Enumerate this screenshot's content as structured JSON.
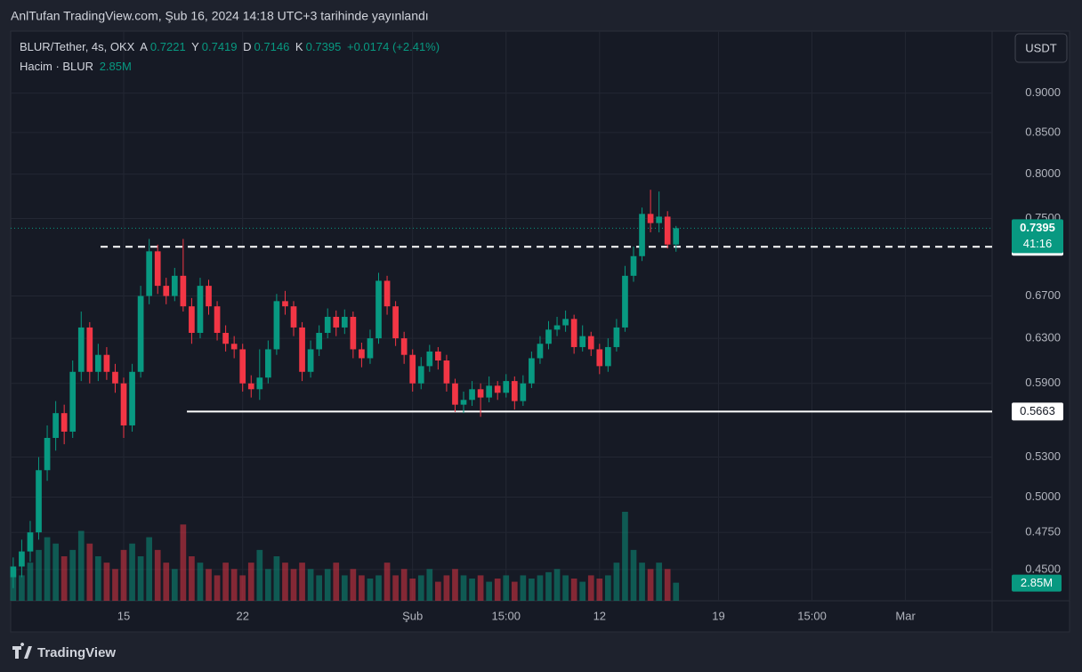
{
  "publisher_line": "AnlTufan TradingView.com, Şub 16, 2024 14:18 UTC+3 tarihinde yayınlandı",
  "currency_button": "USDT",
  "footer_logo": "TradingView",
  "chart_data": {
    "type": "candlestick",
    "symbol": "BLUR/Tether, 4s, OKX",
    "ohlc_labels": [
      "A",
      "Y",
      "D",
      "K"
    ],
    "change": "+0.0174 (+2.41%)",
    "volume_title": "Hacim · BLUR",
    "volume_label": "2.85M",
    "countdown": "41:16",
    "up_color": "#089981",
    "down_color": "#f23645",
    "log_scale": true,
    "grid": true,
    "ylim": [
      0.43,
      0.985
    ],
    "yticks": [
      {
        "value": 0.45,
        "label": "0.4500"
      },
      {
        "value": 0.475,
        "label": "0.4750"
      },
      {
        "value": 0.5,
        "label": "0.5000"
      },
      {
        "value": 0.53,
        "label": "0.5300"
      },
      {
        "value": 0.59,
        "label": "0.5900"
      },
      {
        "value": 0.63,
        "label": "0.6300"
      },
      {
        "value": 0.67,
        "label": "0.6700"
      },
      {
        "value": 0.75,
        "label": "0.7500"
      },
      {
        "value": 0.8,
        "label": "0.8000"
      },
      {
        "value": 0.85,
        "label": "0.8500"
      },
      {
        "value": 0.9,
        "label": "0.9000"
      }
    ],
    "xlim": [
      -6.65,
      51.1
    ],
    "xticks": [
      {
        "value": 0,
        "label": "15"
      },
      {
        "value": 7,
        "label": "22"
      },
      {
        "value": 17,
        "label": "Şub"
      },
      {
        "value": 22.5,
        "label": "15:00"
      },
      {
        "value": 28,
        "label": "12"
      },
      {
        "value": 35,
        "label": "19"
      },
      {
        "value": 40.5,
        "label": "15:00"
      },
      {
        "value": 46,
        "label": "Mar"
      }
    ],
    "levels": [
      {
        "value": 0.7198,
        "style": "dashed",
        "from": -1.36
      },
      {
        "value": 0.5663,
        "style": "solid",
        "from": 3.72
      }
    ],
    "x": [
      -6.5,
      -6,
      -5.5,
      -5,
      -4.5,
      -4,
      -3.5,
      -3,
      -2.5,
      -2,
      -1.5,
      -1,
      -0.5,
      0,
      0.5,
      1,
      1.5,
      2,
      2.5,
      3,
      3.5,
      4,
      4.5,
      5,
      5.5,
      6,
      6.5,
      7,
      7.5,
      8,
      8.5,
      9,
      9.5,
      10,
      10.5,
      11,
      11.5,
      12,
      12.5,
      13,
      13.5,
      14,
      14.5,
      15,
      15.5,
      16,
      16.5,
      17,
      17.5,
      18,
      18.5,
      19,
      19.5,
      20,
      20.5,
      21,
      21.5,
      22,
      22.5,
      23,
      23.5,
      24,
      24.5,
      25,
      25.5,
      26,
      26.5,
      27,
      27.5,
      28,
      28.5,
      29,
      29.5,
      30,
      30.5,
      31,
      31.5,
      32,
      32.5
    ],
    "candles": {
      "open": [
        0.445,
        0.452,
        0.462,
        0.475,
        0.52,
        0.545,
        0.565,
        0.55,
        0.6,
        0.64,
        0.6,
        0.615,
        0.6,
        0.59,
        0.555,
        0.6,
        0.67,
        0.715,
        0.68,
        0.67,
        0.69,
        0.66,
        0.635,
        0.68,
        0.66,
        0.635,
        0.625,
        0.62,
        0.59,
        0.585,
        0.595,
        0.62,
        0.665,
        0.66,
        0.64,
        0.6,
        0.62,
        0.635,
        0.65,
        0.64,
        0.65,
        0.62,
        0.612,
        0.63,
        0.685,
        0.66,
        0.63,
        0.615,
        0.59,
        0.605,
        0.618,
        0.61,
        0.59,
        0.572,
        0.576,
        0.585,
        0.578,
        0.588,
        0.582,
        0.592,
        0.575,
        0.59,
        0.612,
        0.625,
        0.638,
        0.642,
        0.648,
        0.622,
        0.632,
        0.62,
        0.605,
        0.622,
        0.64,
        0.69,
        0.71,
        0.755,
        0.745,
        0.752,
        0.7221
      ],
      "high": [
        0.458,
        0.47,
        0.483,
        0.53,
        0.555,
        0.575,
        0.572,
        0.61,
        0.655,
        0.645,
        0.625,
        0.622,
        0.607,
        0.595,
        0.607,
        0.68,
        0.728,
        0.722,
        0.688,
        0.698,
        0.728,
        0.668,
        0.688,
        0.686,
        0.665,
        0.642,
        0.632,
        0.625,
        0.597,
        0.62,
        0.628,
        0.672,
        0.675,
        0.665,
        0.645,
        0.628,
        0.642,
        0.658,
        0.656,
        0.657,
        0.655,
        0.626,
        0.638,
        0.693,
        0.69,
        0.665,
        0.636,
        0.62,
        0.613,
        0.624,
        0.622,
        0.615,
        0.594,
        0.583,
        0.592,
        0.59,
        0.596,
        0.592,
        0.598,
        0.596,
        0.597,
        0.618,
        0.632,
        0.646,
        0.65,
        0.656,
        0.652,
        0.642,
        0.636,
        0.625,
        0.63,
        0.648,
        0.7,
        0.72,
        0.762,
        0.782,
        0.78,
        0.758,
        0.7419
      ],
      "low": [
        0.438,
        0.445,
        0.455,
        0.47,
        0.512,
        0.535,
        0.54,
        0.545,
        0.592,
        0.59,
        0.592,
        0.593,
        0.582,
        0.545,
        0.55,
        0.595,
        0.662,
        0.672,
        0.662,
        0.665,
        0.655,
        0.625,
        0.63,
        0.652,
        0.628,
        0.618,
        0.612,
        0.583,
        0.578,
        0.576,
        0.59,
        0.615,
        0.652,
        0.632,
        0.592,
        0.595,
        0.614,
        0.63,
        0.632,
        0.634,
        0.612,
        0.604,
        0.607,
        0.625,
        0.652,
        0.623,
        0.607,
        0.583,
        0.585,
        0.6,
        0.602,
        0.583,
        0.566,
        0.565,
        0.571,
        0.562,
        0.574,
        0.576,
        0.578,
        0.568,
        0.571,
        0.586,
        0.607,
        0.62,
        0.632,
        0.636,
        0.616,
        0.618,
        0.614,
        0.598,
        0.6,
        0.618,
        0.636,
        0.684,
        0.705,
        0.735,
        0.735,
        0.718,
        0.7146
      ],
      "close": [
        0.452,
        0.462,
        0.475,
        0.52,
        0.545,
        0.565,
        0.55,
        0.6,
        0.64,
        0.6,
        0.615,
        0.6,
        0.59,
        0.555,
        0.6,
        0.67,
        0.715,
        0.68,
        0.67,
        0.69,
        0.66,
        0.635,
        0.68,
        0.66,
        0.635,
        0.625,
        0.62,
        0.59,
        0.585,
        0.595,
        0.62,
        0.665,
        0.66,
        0.64,
        0.6,
        0.62,
        0.635,
        0.65,
        0.64,
        0.65,
        0.62,
        0.612,
        0.63,
        0.685,
        0.66,
        0.63,
        0.615,
        0.59,
        0.605,
        0.618,
        0.61,
        0.59,
        0.572,
        0.576,
        0.585,
        0.578,
        0.588,
        0.582,
        0.592,
        0.575,
        0.59,
        0.612,
        0.625,
        0.638,
        0.642,
        0.648,
        0.622,
        0.632,
        0.62,
        0.605,
        0.622,
        0.64,
        0.69,
        0.71,
        0.755,
        0.745,
        0.752,
        0.7221,
        0.7395
      ]
    },
    "volume": [
      5,
      4,
      6,
      8,
      10,
      9,
      7,
      8,
      11,
      9,
      7,
      6,
      5,
      8,
      9,
      7,
      10,
      8,
      6,
      5,
      12,
      7,
      6,
      5,
      4,
      6,
      5,
      4,
      6,
      8,
      5,
      7,
      6,
      5,
      6,
      5,
      4,
      5,
      6,
      4,
      5,
      4,
      3.5,
      4,
      6,
      4,
      5,
      3.5,
      4,
      5,
      3,
      4,
      5,
      4,
      3.5,
      4,
      3,
      3.5,
      4,
      3,
      4,
      3.5,
      4,
      4.5,
      5,
      4,
      3.5,
      3,
      4,
      3.5,
      4,
      6,
      14,
      8,
      6,
      5,
      6,
      5,
      2.85
    ]
  }
}
